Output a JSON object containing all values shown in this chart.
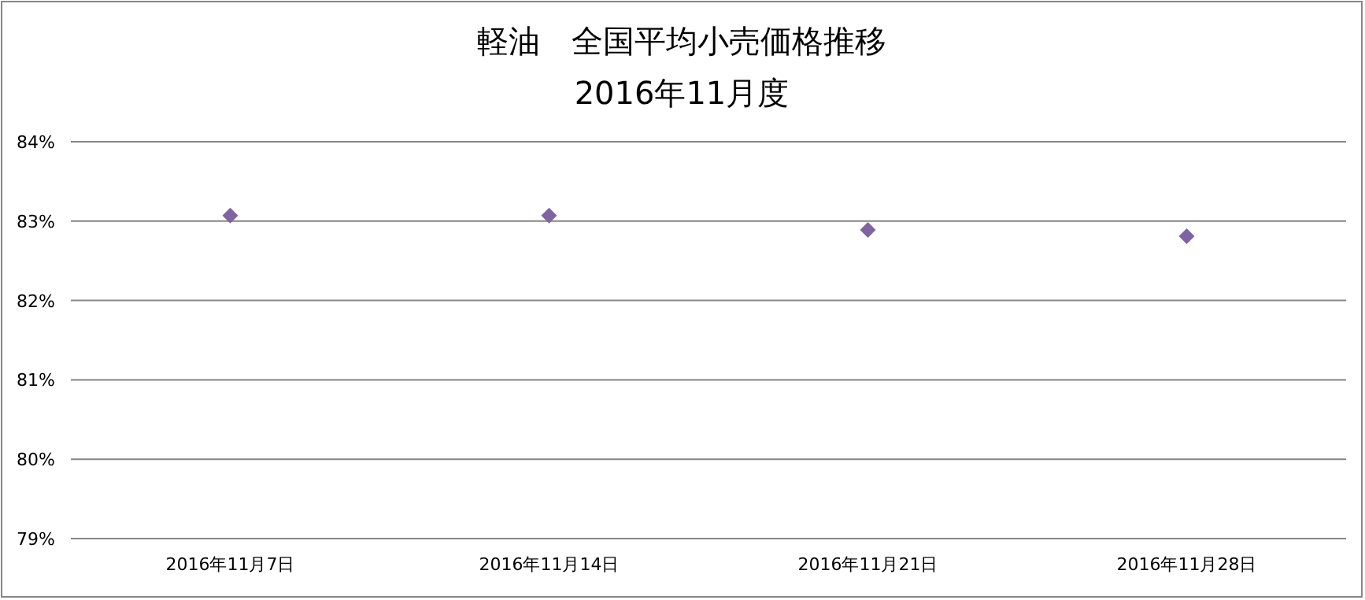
{
  "chart_data": {
    "type": "scatter",
    "title": "軽油　全国平均小売価格推移",
    "subtitle": "2016年11月度",
    "categories": [
      "2016年11月7日",
      "2016年11月14日",
      "2016年11月21日",
      "2016年11月28日"
    ],
    "values": [
      83.07,
      83.07,
      82.89,
      82.81
    ],
    "color": "#8064a2",
    "marker": "diamond",
    "grid": "y",
    "ylim": [
      79,
      84
    ],
    "yticks": [
      {
        "value": 79,
        "label": "79%"
      },
      {
        "value": 80,
        "label": "80%"
      },
      {
        "value": 81,
        "label": "81%"
      },
      {
        "value": 82,
        "label": "82%"
      },
      {
        "value": 83,
        "label": "83%"
      },
      {
        "value": 84,
        "label": "84%"
      }
    ]
  }
}
